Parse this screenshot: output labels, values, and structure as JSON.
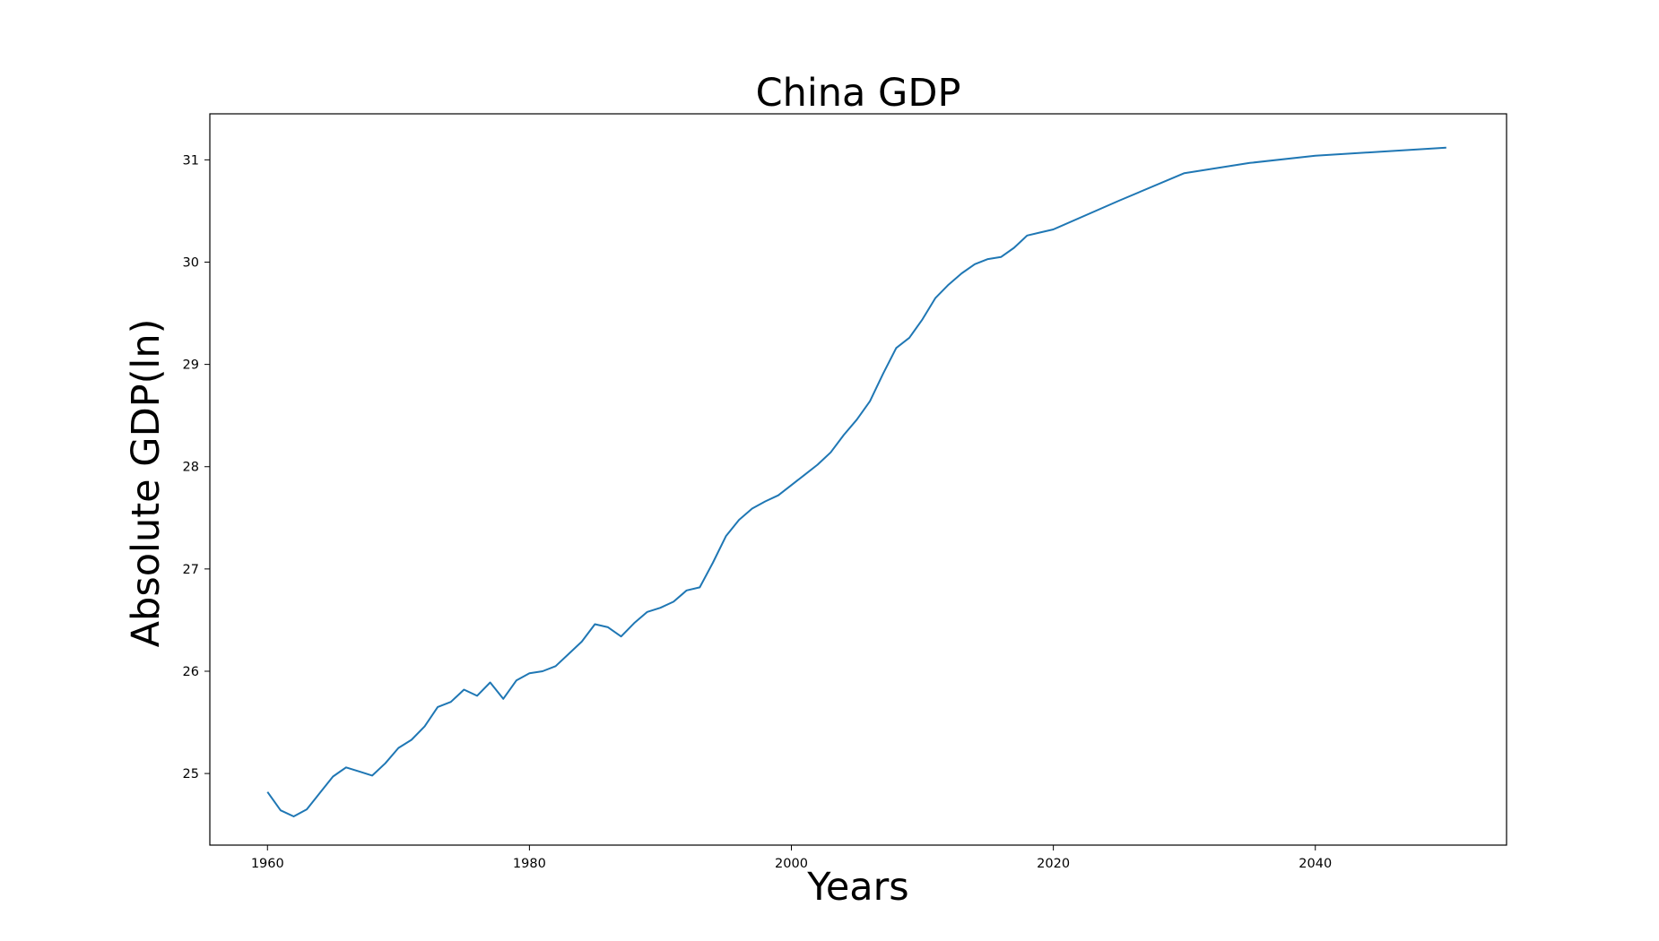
{
  "chart_data": {
    "type": "line",
    "title": "China GDP",
    "xlabel": "Years",
    "ylabel": "Absolute GDP(ln)",
    "xlim": [
      1955.6,
      2054.6
    ],
    "ylim": [
      24.3,
      31.45
    ],
    "x_ticks": [
      1960,
      1980,
      2000,
      2020,
      2040
    ],
    "y_ticks": [
      25,
      26,
      27,
      28,
      29,
      30,
      31
    ],
    "grid": false,
    "legend": "none",
    "series": [
      {
        "color": "#1f77b4",
        "x": [
          1960,
          1961,
          1962,
          1963,
          1964,
          1965,
          1966,
          1967,
          1968,
          1969,
          1970,
          1971,
          1972,
          1973,
          1974,
          1975,
          1976,
          1977,
          1978,
          1979,
          1980,
          1981,
          1982,
          1983,
          1984,
          1985,
          1986,
          1987,
          1988,
          1989,
          1990,
          1991,
          1992,
          1993,
          1994,
          1995,
          1996,
          1997,
          1998,
          1999,
          2000,
          2001,
          2002,
          2003,
          2004,
          2005,
          2006,
          2007,
          2008,
          2009,
          2010,
          2011,
          2012,
          2013,
          2014,
          2015,
          2016,
          2017,
          2018,
          2019,
          2020,
          2025,
          2030,
          2035,
          2040,
          2045,
          2050
        ],
        "y": [
          24.82,
          24.64,
          24.58,
          24.65,
          24.81,
          24.97,
          25.06,
          25.02,
          24.98,
          25.1,
          25.25,
          25.33,
          25.46,
          25.65,
          25.7,
          25.82,
          25.76,
          25.89,
          25.73,
          25.91,
          25.98,
          26.0,
          26.05,
          26.17,
          26.29,
          26.46,
          26.43,
          26.34,
          26.47,
          26.58,
          26.62,
          26.68,
          26.79,
          26.82,
          27.06,
          27.32,
          27.48,
          27.59,
          27.66,
          27.72,
          27.82,
          27.92,
          28.02,
          28.14,
          28.31,
          28.46,
          28.64,
          28.91,
          29.16,
          29.26,
          29.44,
          29.65,
          29.78,
          29.89,
          29.98,
          30.03,
          30.05,
          30.14,
          30.26,
          30.29,
          30.32,
          30.6,
          30.87,
          30.97,
          31.04,
          31.08,
          31.12
        ]
      }
    ]
  }
}
